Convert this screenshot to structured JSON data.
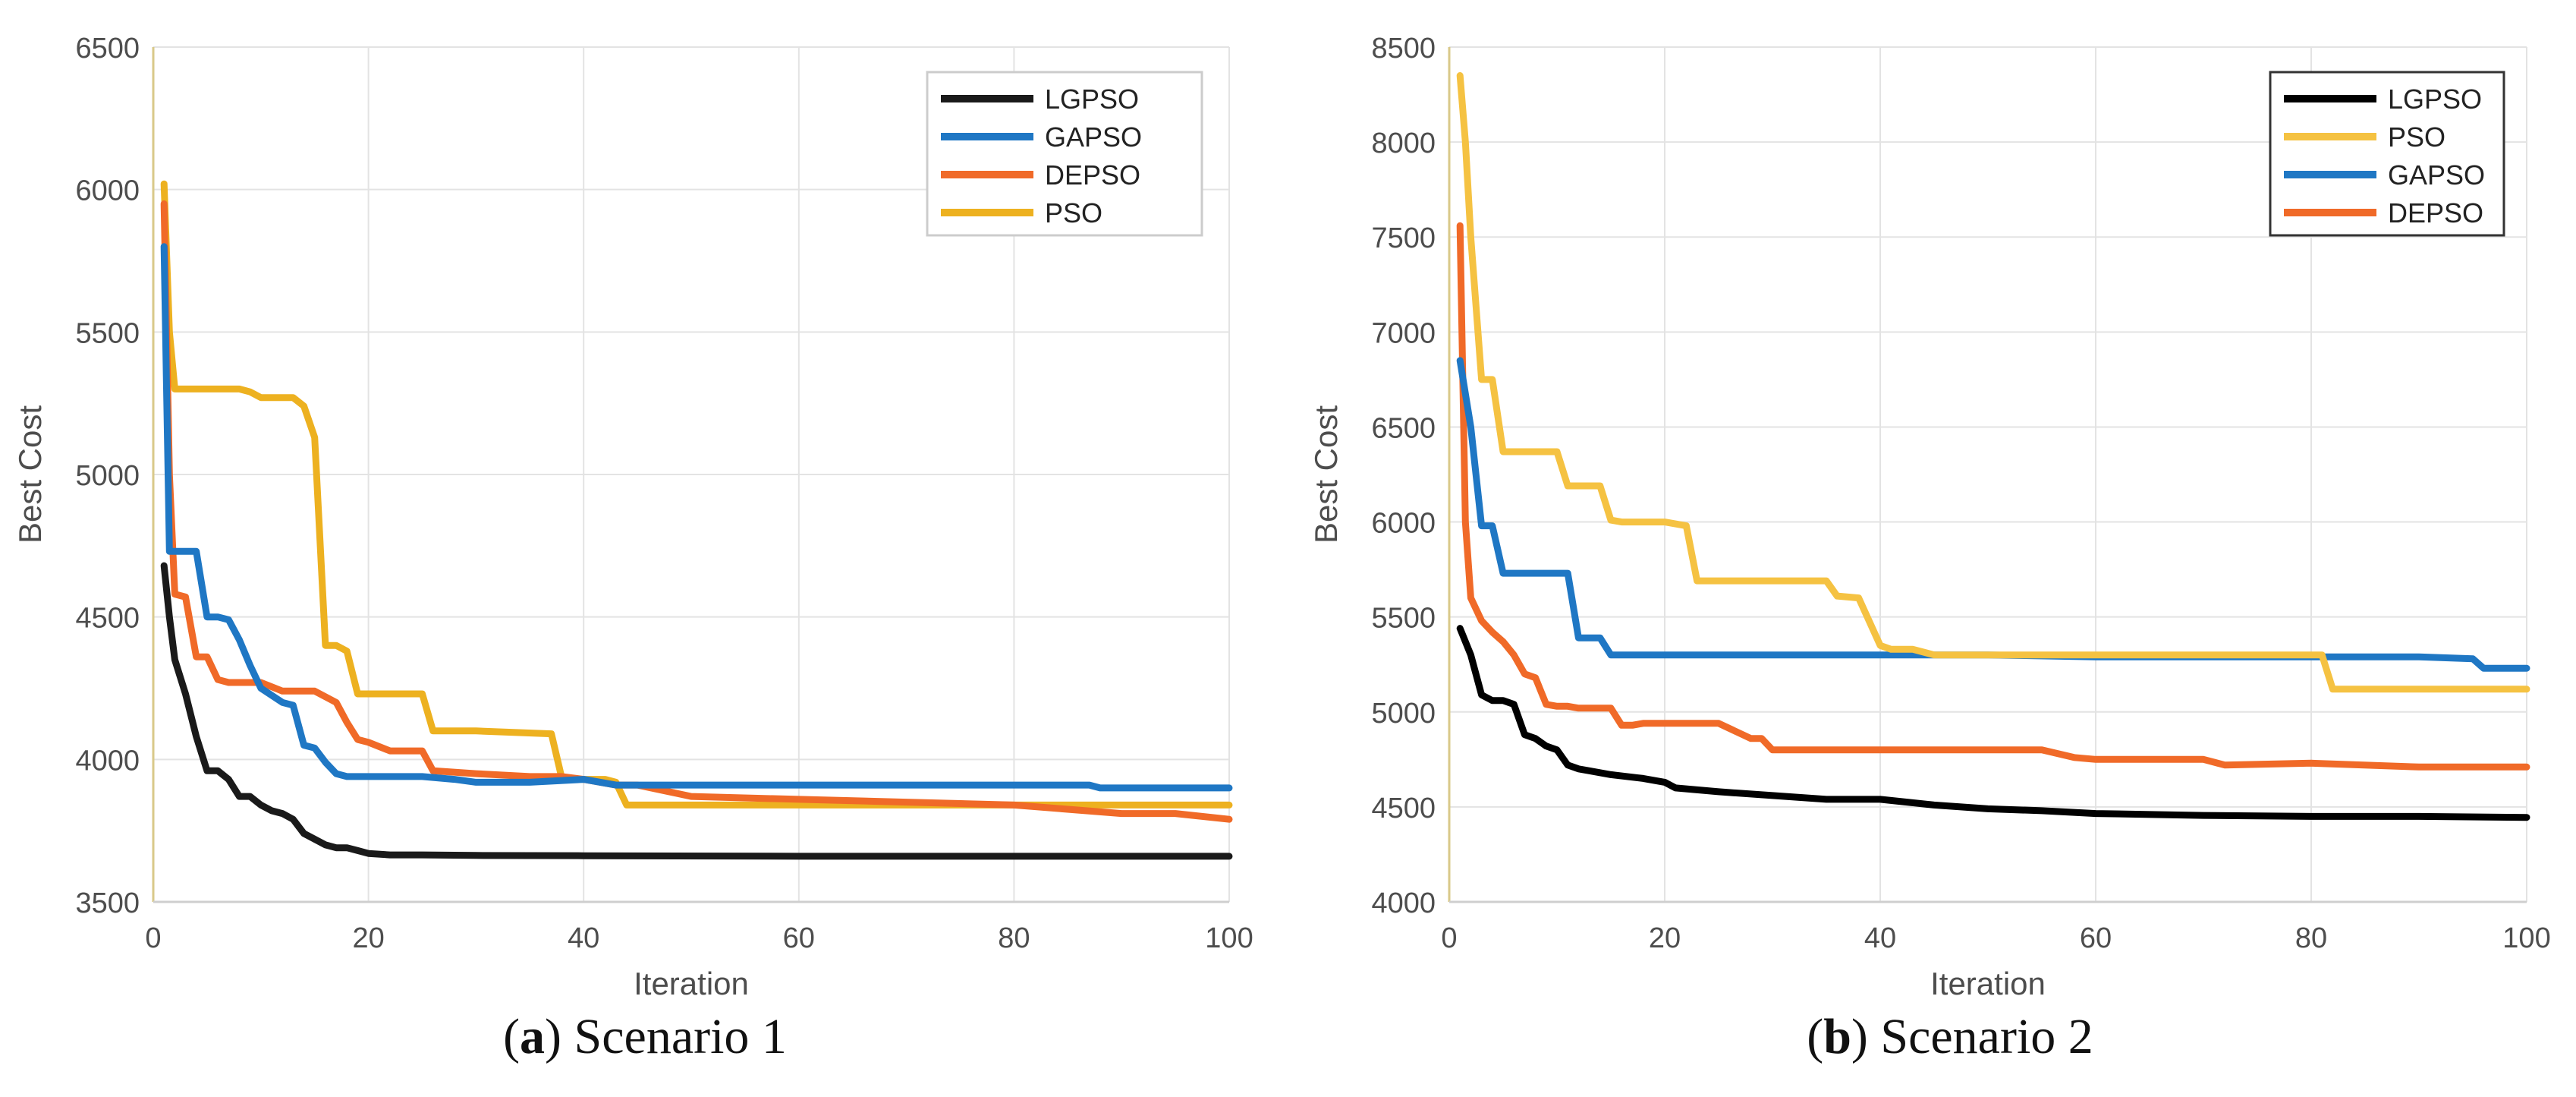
{
  "figures": [
    {
      "caption_letter": "a",
      "caption_text": "Scenario 1"
    },
    {
      "caption_letter": "b",
      "caption_text": "Scenario 2"
    }
  ],
  "chart_data": [
    {
      "type": "line",
      "title": "",
      "xlabel": "Iteration",
      "ylabel": "Best Cost",
      "xlim": [
        0,
        100
      ],
      "ylim": [
        3500,
        6500
      ],
      "xticks": [
        0,
        20,
        40,
        60,
        80,
        100
      ],
      "yticks": [
        3500,
        4000,
        4500,
        5000,
        5500,
        6000,
        6500
      ],
      "grid": true,
      "legend_position": "top-right",
      "series": [
        {
          "name": "LGPSO",
          "color": "#1a1a1a",
          "x": [
            1,
            1.5,
            2,
            3,
            4,
            5,
            6,
            7,
            8,
            9,
            10,
            11,
            12,
            13,
            14,
            15,
            16,
            17,
            18,
            19,
            20,
            22,
            25,
            30,
            40,
            60,
            80,
            100
          ],
          "y": [
            4680,
            4500,
            4350,
            4230,
            4080,
            3960,
            3960,
            3930,
            3870,
            3870,
            3840,
            3820,
            3810,
            3790,
            3740,
            3720,
            3700,
            3690,
            3690,
            3680,
            3670,
            3665,
            3665,
            3663,
            3662,
            3660,
            3660,
            3660
          ]
        },
        {
          "name": "GAPSO",
          "color": "#1f77c4",
          "x": [
            1,
            1.5,
            2,
            3,
            4,
            5,
            6,
            7,
            8,
            9,
            10,
            12,
            13,
            14,
            15,
            16,
            17,
            18,
            20,
            25,
            28,
            30,
            35,
            40,
            43,
            50,
            60,
            70,
            80,
            87,
            88,
            100
          ],
          "y": [
            5800,
            4730,
            4730,
            4730,
            4730,
            4500,
            4500,
            4490,
            4420,
            4330,
            4250,
            4200,
            4190,
            4050,
            4040,
            3990,
            3950,
            3940,
            3940,
            3940,
            3930,
            3920,
            3920,
            3930,
            3910,
            3910,
            3910,
            3910,
            3910,
            3910,
            3900,
            3900
          ]
        },
        {
          "name": "DEPSO",
          "color": "#f06a28",
          "x": [
            1,
            1.5,
            2,
            3,
            4,
            5,
            6,
            7,
            8,
            10,
            12,
            15,
            17,
            18,
            19,
            20,
            22,
            25,
            26,
            30,
            35,
            38,
            40,
            43,
            45,
            50,
            60,
            70,
            80,
            90,
            95,
            100
          ],
          "y": [
            5950,
            5000,
            4580,
            4570,
            4360,
            4360,
            4280,
            4270,
            4270,
            4270,
            4240,
            4240,
            4200,
            4130,
            4070,
            4060,
            4030,
            4030,
            3960,
            3950,
            3940,
            3940,
            3930,
            3910,
            3910,
            3870,
            3860,
            3850,
            3840,
            3810,
            3810,
            3790
          ]
        },
        {
          "name": "PSO",
          "color": "#edb120",
          "x": [
            1,
            1.5,
            2,
            3,
            6,
            8,
            9,
            10,
            11,
            13,
            14,
            15,
            16,
            17,
            18,
            19,
            20,
            22,
            25,
            26,
            30,
            37,
            38,
            42,
            43,
            44,
            50,
            60,
            70,
            80,
            90,
            100
          ],
          "y": [
            6020,
            5500,
            5300,
            5300,
            5300,
            5300,
            5290,
            5270,
            5270,
            5270,
            5240,
            5130,
            4400,
            4400,
            4380,
            4230,
            4230,
            4230,
            4230,
            4100,
            4100,
            4090,
            3930,
            3930,
            3920,
            3840,
            3840,
            3840,
            3840,
            3840,
            3840,
            3840
          ]
        }
      ]
    },
    {
      "type": "line",
      "title": "",
      "xlabel": "Iteration",
      "ylabel": "Best Cost",
      "xlim": [
        0,
        100
      ],
      "ylim": [
        4000,
        8500
      ],
      "xticks": [
        0,
        20,
        40,
        60,
        80,
        100
      ],
      "yticks": [
        4000,
        4500,
        5000,
        5500,
        6000,
        6500,
        7000,
        7500,
        8000,
        8500
      ],
      "grid": true,
      "legend_position": "top-right",
      "series": [
        {
          "name": "LGPSO",
          "color": "#000000",
          "x": [
            1,
            2,
            3,
            4,
            5,
            6,
            7,
            8,
            9,
            10,
            11,
            12,
            13,
            15,
            18,
            20,
            21,
            25,
            30,
            35,
            40,
            45,
            50,
            55,
            60,
            70,
            80,
            90,
            100
          ],
          "y": [
            5440,
            5300,
            5090,
            5060,
            5060,
            5040,
            4880,
            4860,
            4820,
            4800,
            4720,
            4700,
            4690,
            4670,
            4650,
            4630,
            4600,
            4580,
            4560,
            4540,
            4540,
            4510,
            4490,
            4480,
            4465,
            4455,
            4450,
            4450,
            4445
          ]
        },
        {
          "name": "PSO",
          "color": "#f5c242",
          "x": [
            1,
            1.5,
            2,
            3,
            4,
            5,
            6,
            8,
            10,
            11,
            12,
            14,
            15,
            16,
            20,
            22,
            23,
            30,
            35,
            36,
            38,
            40,
            41,
            43,
            45,
            50,
            60,
            70,
            80,
            81,
            82,
            90,
            100
          ],
          "y": [
            8350,
            8000,
            7500,
            6750,
            6750,
            6370,
            6370,
            6370,
            6370,
            6190,
            6190,
            6190,
            6010,
            6000,
            6000,
            5980,
            5690,
            5690,
            5690,
            5610,
            5600,
            5350,
            5330,
            5330,
            5300,
            5300,
            5300,
            5300,
            5300,
            5300,
            5120,
            5120,
            5120
          ]
        },
        {
          "name": "GAPSO",
          "color": "#1f77c4",
          "x": [
            1,
            2,
            3,
            4,
            5,
            6,
            8,
            11,
            12,
            13,
            14,
            15,
            16,
            20,
            30,
            40,
            50,
            60,
            70,
            80,
            90,
            95,
            96,
            100
          ],
          "y": [
            6850,
            6500,
            5980,
            5980,
            5730,
            5730,
            5730,
            5730,
            5390,
            5390,
            5390,
            5300,
            5300,
            5300,
            5300,
            5300,
            5300,
            5290,
            5290,
            5290,
            5290,
            5280,
            5230,
            5230
          ]
        },
        {
          "name": "DEPSO",
          "color": "#f06a28",
          "x": [
            1,
            1.5,
            2,
            3,
            4,
            5,
            6,
            7,
            8,
            9,
            10,
            11,
            12,
            15,
            16,
            17,
            18,
            20,
            25,
            28,
            29,
            30,
            40,
            50,
            55,
            58,
            60,
            70,
            72,
            80,
            90,
            100
          ],
          "y": [
            7560,
            6000,
            5600,
            5480,
            5420,
            5370,
            5300,
            5200,
            5180,
            5040,
            5030,
            5030,
            5020,
            5020,
            4930,
            4930,
            4940,
            4940,
            4940,
            4860,
            4860,
            4800,
            4800,
            4800,
            4800,
            4760,
            4750,
            4750,
            4720,
            4730,
            4710,
            4710
          ]
        }
      ]
    }
  ]
}
